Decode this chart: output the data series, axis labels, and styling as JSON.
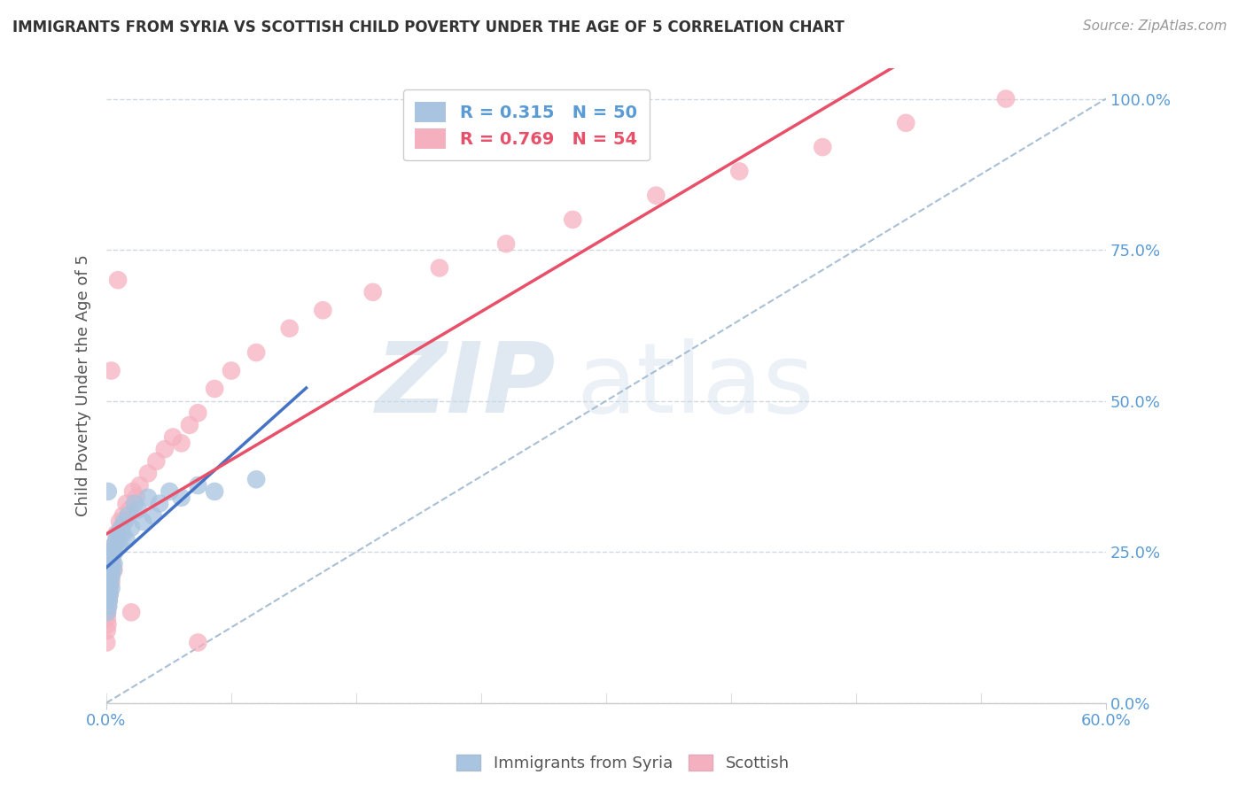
{
  "title": "IMMIGRANTS FROM SYRIA VS SCOTTISH CHILD POVERTY UNDER THE AGE OF 5 CORRELATION CHART",
  "source": "Source: ZipAtlas.com",
  "ylabel": "Child Poverty Under the Age of 5",
  "legend_blue_r": "R = 0.315",
  "legend_blue_n": "N = 50",
  "legend_pink_r": "R = 0.769",
  "legend_pink_n": "N = 54",
  "legend_blue_label": "Immigrants from Syria",
  "legend_pink_label": "Scottish",
  "blue_color": "#a8c4e0",
  "pink_color": "#f5b0c0",
  "blue_line_color": "#4472c4",
  "pink_line_color": "#e8506a",
  "dash_line_color": "#a0b8d0",
  "watermark_zip": "ZIP",
  "watermark_atlas": "atlas",
  "background_color": "#ffffff",
  "xlim": [
    0.0,
    0.6
  ],
  "ylim": [
    0.0,
    1.05
  ],
  "ytick_vals": [
    0.0,
    0.25,
    0.5,
    0.75,
    1.0
  ],
  "ytick_labels": [
    "0.0%",
    "25.0%",
    "50.0%",
    "75.0%",
    "100.0%"
  ],
  "xtick_vals": [
    0.0,
    0.6
  ],
  "xtick_labels": [
    "0.0%",
    "60.0%"
  ],
  "blue_x": [
    0.0002,
    0.0003,
    0.0005,
    0.0006,
    0.0007,
    0.0008,
    0.0009,
    0.001,
    0.001,
    0.0012,
    0.0013,
    0.0014,
    0.0015,
    0.0016,
    0.0017,
    0.0018,
    0.002,
    0.002,
    0.0022,
    0.0023,
    0.0025,
    0.003,
    0.003,
    0.0032,
    0.0035,
    0.004,
    0.0042,
    0.0045,
    0.005,
    0.006,
    0.007,
    0.008,
    0.009,
    0.01,
    0.011,
    0.012,
    0.013,
    0.015,
    0.017,
    0.019,
    0.022,
    0.025,
    0.028,
    0.032,
    0.038,
    0.045,
    0.055,
    0.065,
    0.09,
    0.001
  ],
  "blue_y": [
    0.18,
    0.2,
    0.15,
    0.22,
    0.17,
    0.19,
    0.21,
    0.18,
    0.23,
    0.16,
    0.2,
    0.24,
    0.19,
    0.17,
    0.22,
    0.21,
    0.18,
    0.25,
    0.2,
    0.23,
    0.22,
    0.25,
    0.19,
    0.21,
    0.24,
    0.22,
    0.26,
    0.23,
    0.25,
    0.27,
    0.28,
    0.26,
    0.29,
    0.28,
    0.3,
    0.27,
    0.31,
    0.29,
    0.33,
    0.32,
    0.3,
    0.34,
    0.31,
    0.33,
    0.35,
    0.34,
    0.36,
    0.35,
    0.37,
    0.35
  ],
  "pink_x": [
    0.0002,
    0.0004,
    0.0005,
    0.0006,
    0.0008,
    0.001,
    0.0012,
    0.0014,
    0.0016,
    0.0018,
    0.002,
    0.0022,
    0.0025,
    0.003,
    0.003,
    0.0035,
    0.004,
    0.0045,
    0.005,
    0.006,
    0.007,
    0.008,
    0.009,
    0.01,
    0.012,
    0.014,
    0.016,
    0.018,
    0.02,
    0.025,
    0.03,
    0.035,
    0.04,
    0.045,
    0.05,
    0.055,
    0.065,
    0.075,
    0.09,
    0.11,
    0.13,
    0.16,
    0.2,
    0.24,
    0.28,
    0.33,
    0.38,
    0.43,
    0.48,
    0.54,
    0.003,
    0.007,
    0.015,
    0.055
  ],
  "pink_y": [
    0.1,
    0.12,
    0.14,
    0.15,
    0.13,
    0.16,
    0.18,
    0.17,
    0.2,
    0.19,
    0.18,
    0.22,
    0.21,
    0.2,
    0.24,
    0.23,
    0.25,
    0.22,
    0.26,
    0.28,
    0.27,
    0.3,
    0.29,
    0.31,
    0.33,
    0.32,
    0.35,
    0.34,
    0.36,
    0.38,
    0.4,
    0.42,
    0.44,
    0.43,
    0.46,
    0.48,
    0.52,
    0.55,
    0.58,
    0.62,
    0.65,
    0.68,
    0.72,
    0.76,
    0.8,
    0.84,
    0.88,
    0.92,
    0.96,
    1.0,
    0.55,
    0.7,
    0.15,
    0.1
  ]
}
